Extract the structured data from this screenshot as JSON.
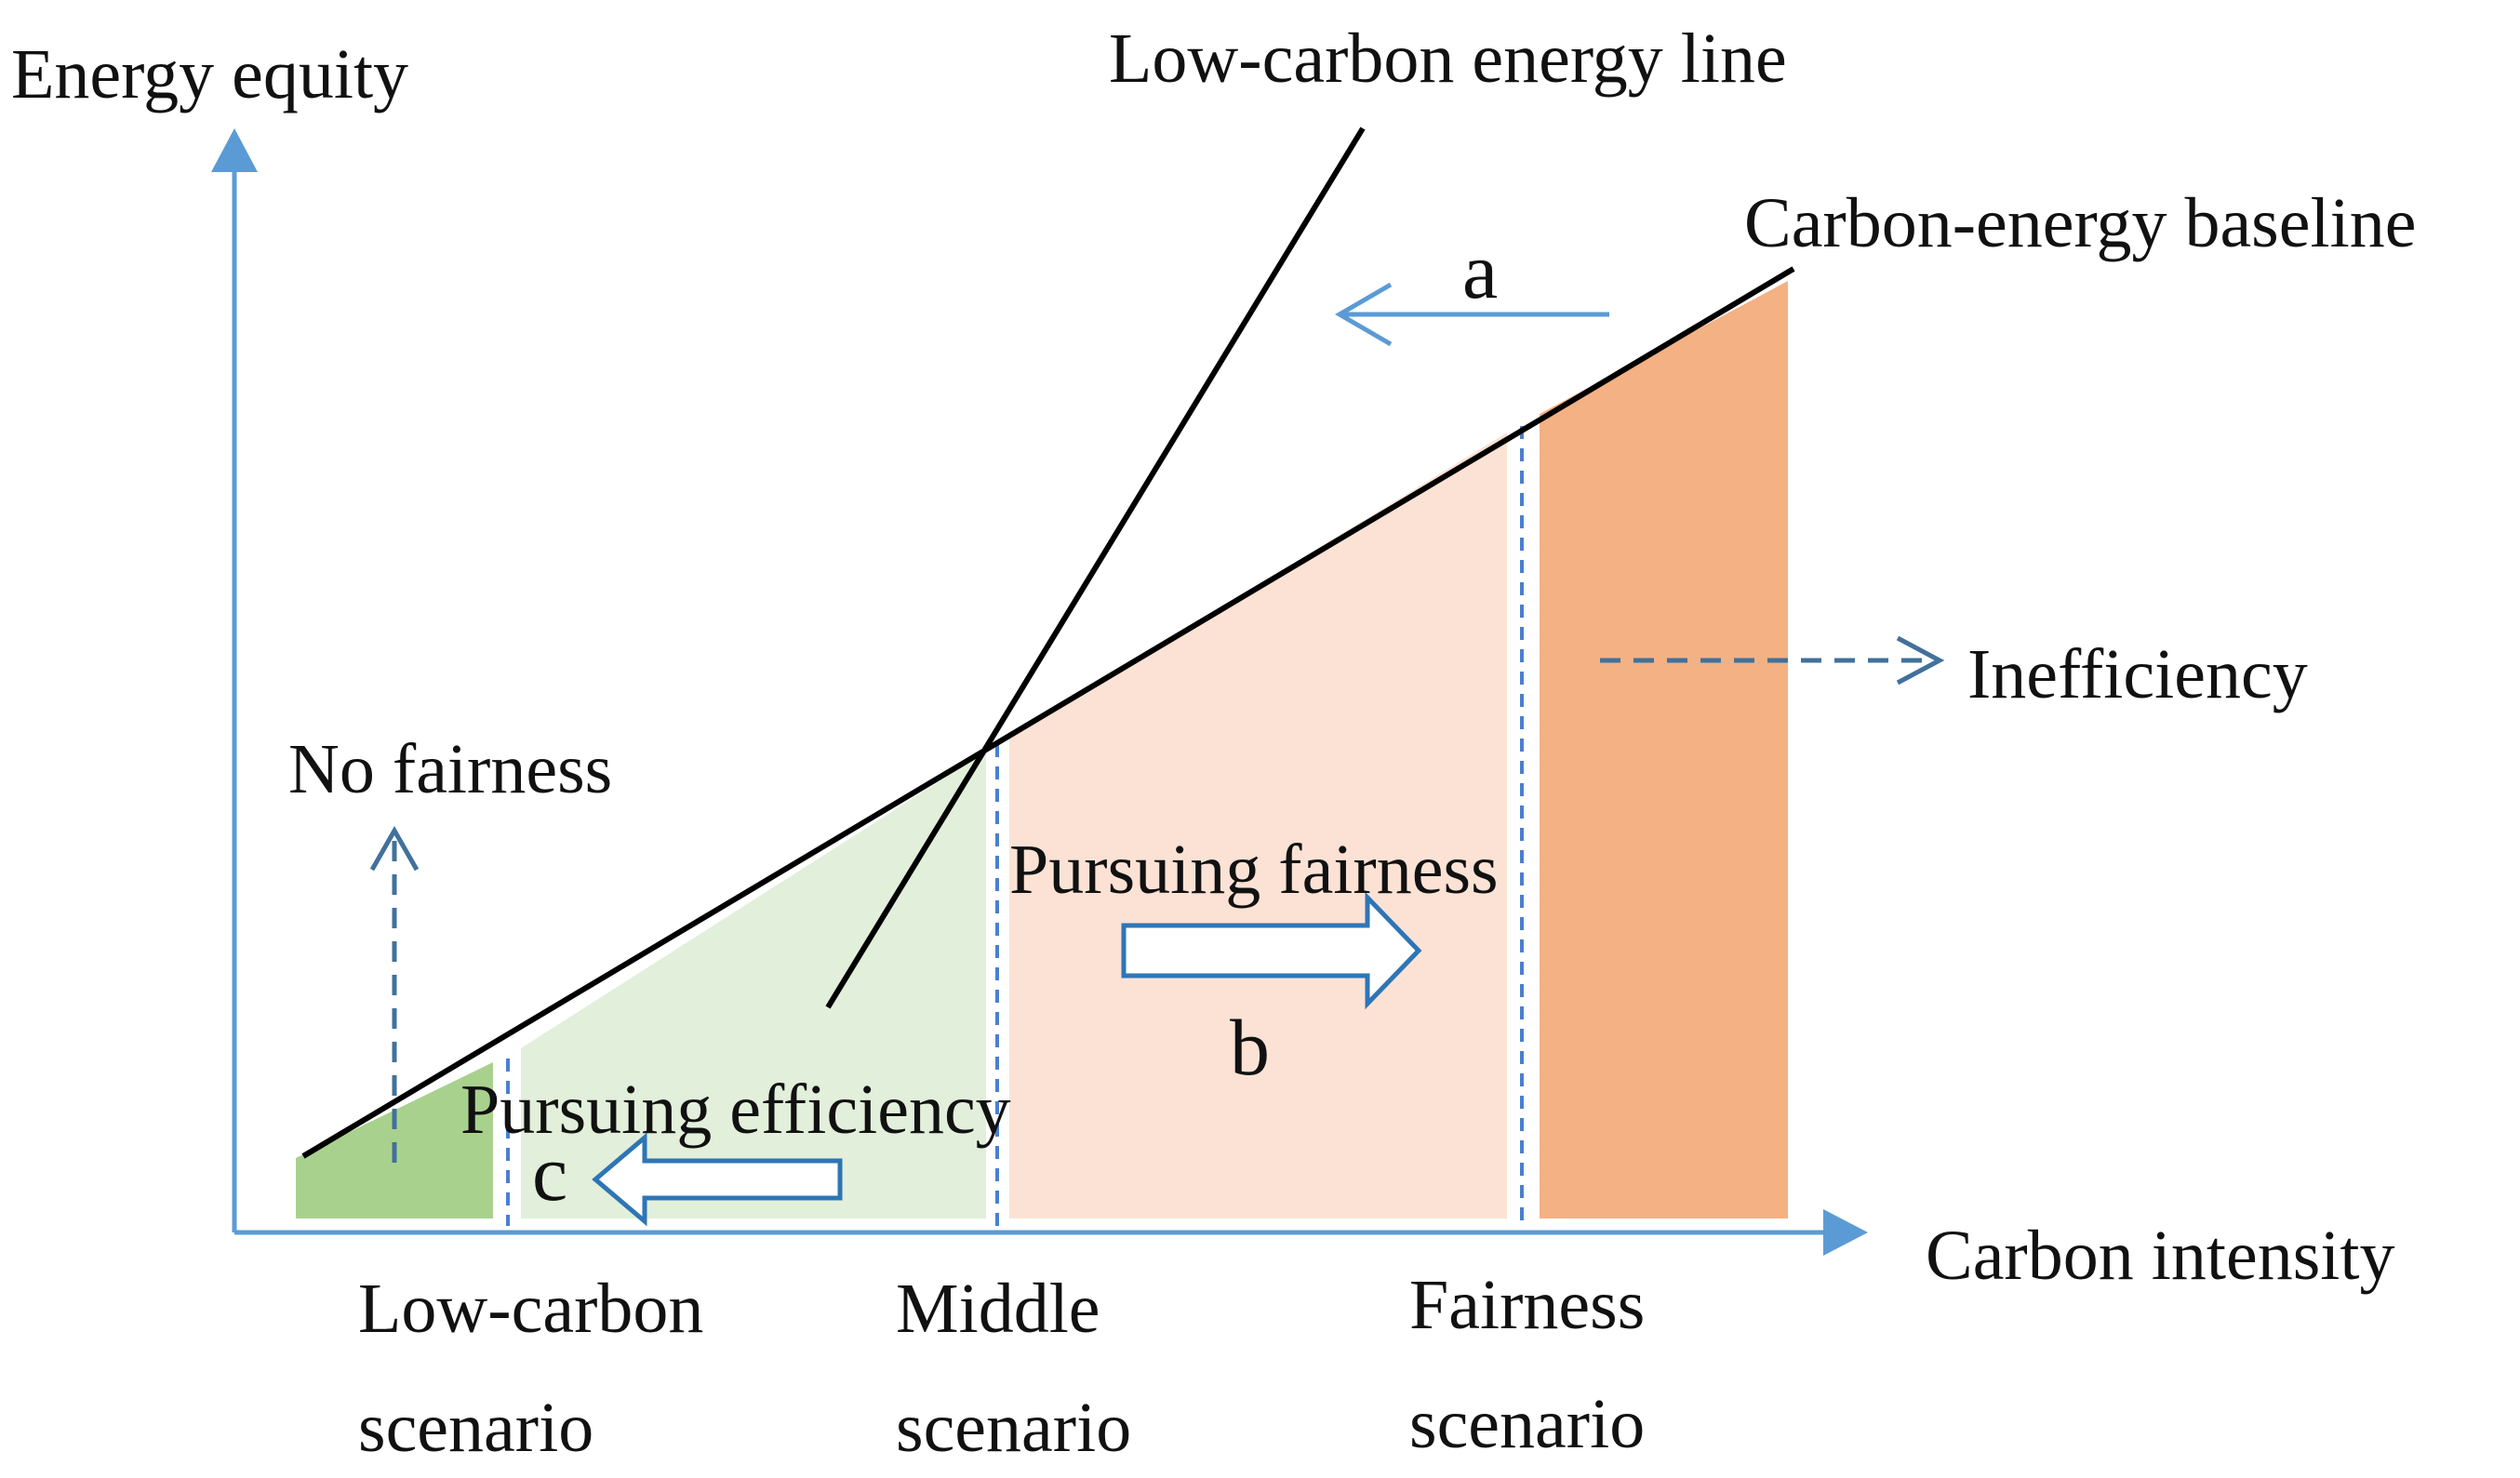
{
  "axes": {
    "y_label": "Energy equity",
    "x_label": "Carbon intensity"
  },
  "lines": {
    "low_carbon": "Low-carbon energy line",
    "baseline": "Carbon-energy baseline"
  },
  "arrows": {
    "a": "a",
    "b": "b",
    "c": "c"
  },
  "region_labels": {
    "no_fairness": "No fairness",
    "inefficiency": "Inefficiency",
    "pursuing_fairness": "Pursuing fairness",
    "pursuing_efficiency": "Pursuing efficiency"
  },
  "scenarios": {
    "low_carbon": [
      "Low-carbon",
      "scenario"
    ],
    "middle": [
      "Middle",
      "scenario"
    ],
    "fairness": [
      "Fairness",
      "scenario"
    ]
  },
  "colors": {
    "axis": "#5b9bd5",
    "dark_green": "#a9d18e",
    "light_green": "#e2efda",
    "light_orange": "#fbe2d5",
    "dark_orange": "#f4b183",
    "line": "#000000",
    "arrow_stroke": "#2e75b6",
    "dash_arrow": "#41719c"
  }
}
